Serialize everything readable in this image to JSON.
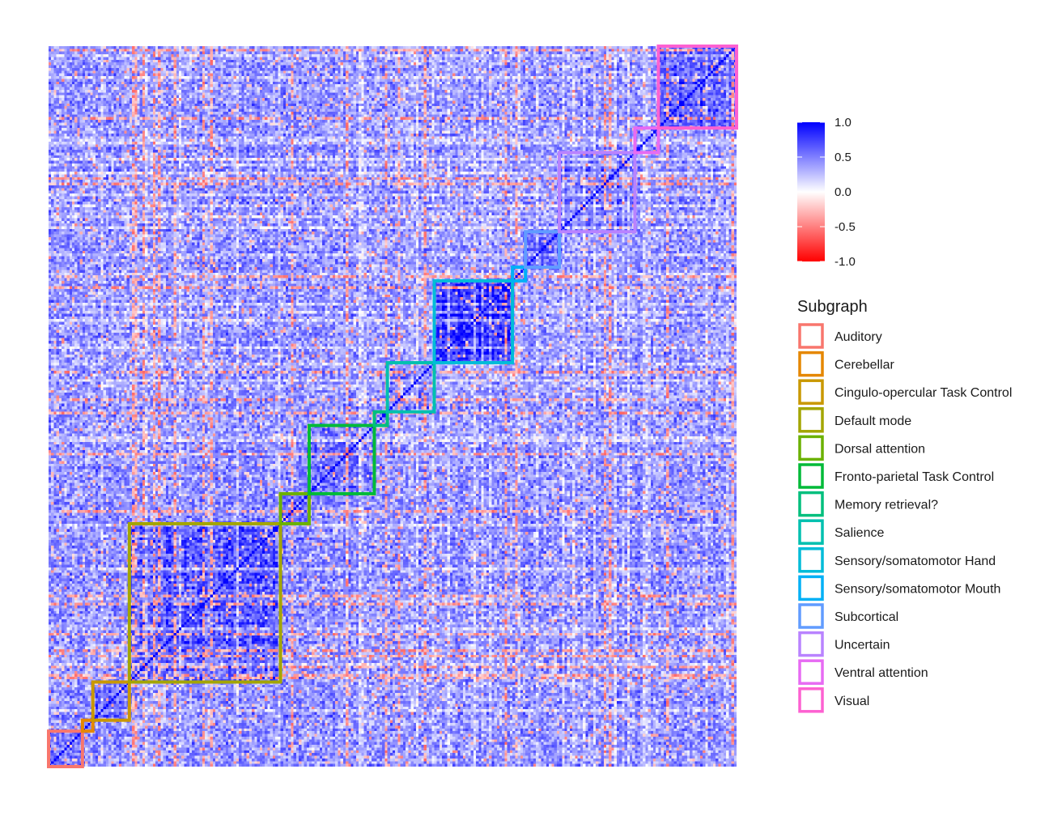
{
  "chart_data": {
    "type": "heatmap",
    "title": "",
    "xlabel": "",
    "ylabel": "",
    "n_nodes": 264,
    "value_range": [
      -1,
      1
    ],
    "diagonal_value": 1.0,
    "colorbar": {
      "ticks": [
        "1.0",
        "0.5",
        "0.0",
        "-0.5",
        "-1.0"
      ],
      "tick_values": [
        1.0,
        0.5,
        0.0,
        -0.5,
        -1.0
      ],
      "colors": {
        "low": "#ff0000",
        "mid": "#ffffff",
        "high": "#0000ff"
      }
    },
    "legend": {
      "title": "Subgraph",
      "placement": "right"
    },
    "subgraphs": [
      {
        "name": "Auditory",
        "color": "#F8766D",
        "start": 0,
        "end": 13
      },
      {
        "name": "Cerebellar",
        "color": "#E58700",
        "start": 13,
        "end": 17
      },
      {
        "name": "Cingulo-opercular Task Control",
        "color": "#C99800",
        "start": 17,
        "end": 31
      },
      {
        "name": "Default mode",
        "color": "#A3A500",
        "start": 31,
        "end": 89
      },
      {
        "name": "Dorsal attention",
        "color": "#6BB100",
        "start": 89,
        "end": 100
      },
      {
        "name": "Fronto-parietal Task Control",
        "color": "#00BA38",
        "start": 100,
        "end": 125
      },
      {
        "name": "Memory retrieval?",
        "color": "#00BF7D",
        "start": 125,
        "end": 130
      },
      {
        "name": "Salience",
        "color": "#00C0AF",
        "start": 130,
        "end": 148
      },
      {
        "name": "Sensory/somatomotor Hand",
        "color": "#00BCD8",
        "start": 148,
        "end": 178
      },
      {
        "name": "Sensory/somatomotor Mouth",
        "color": "#00B0F6",
        "start": 178,
        "end": 183
      },
      {
        "name": "Subcortical",
        "color": "#619CFF",
        "start": 183,
        "end": 196
      },
      {
        "name": "Uncertain",
        "color": "#B983FF",
        "start": 196,
        "end": 225
      },
      {
        "name": "Ventral attention",
        "color": "#E76BF3",
        "start": 225,
        "end": 234
      },
      {
        "name": "Visual",
        "color": "#FD61D1",
        "start": 234,
        "end": 264
      }
    ]
  }
}
